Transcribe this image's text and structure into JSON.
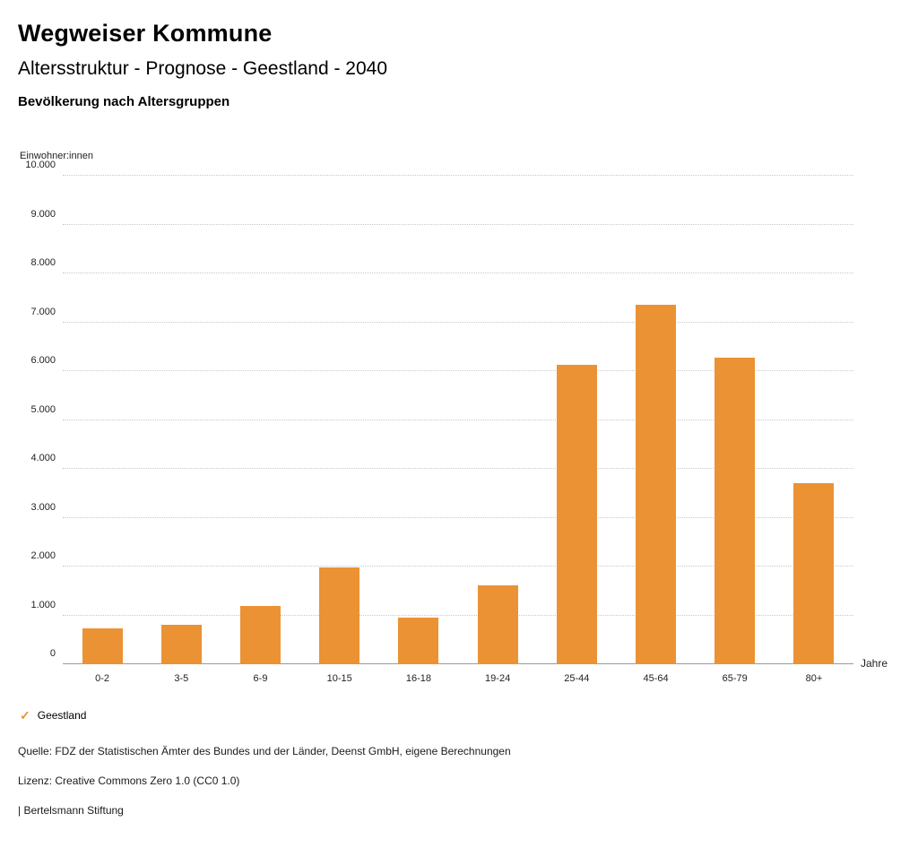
{
  "header": {
    "title": "Wegweiser Kommune",
    "subtitle": "Altersstruktur - Prognose - Geestland - 2040",
    "chart_title": "Bevölkerung nach Altersgruppen"
  },
  "chart_data": {
    "type": "bar",
    "title": "Bevölkerung nach Altersgruppen",
    "ylabel": "Einwohner:innen",
    "xlabel": "Jahre",
    "categories": [
      "0-2",
      "3-5",
      "6-9",
      "10-15",
      "16-18",
      "19-24",
      "25-44",
      "45-64",
      "65-79",
      "80+"
    ],
    "series": [
      {
        "name": "Geestland",
        "values": [
          730,
          810,
          1200,
          1980,
          950,
          1620,
          6130,
          7350,
          6270,
          3700
        ]
      }
    ],
    "ylim": [
      0,
      10000
    ],
    "ytick_step": 1000,
    "ytick_labels": [
      "0",
      "1.000",
      "2.000",
      "3.000",
      "4.000",
      "5.000",
      "6.000",
      "7.000",
      "8.000",
      "9.000",
      "10.000"
    ],
    "grid": true,
    "bar_color": "#EB9234",
    "legend_position": "bottom"
  },
  "legend": {
    "label": "Geestland",
    "check_glyph": "✓",
    "check_color": "#EB9234"
  },
  "footer": {
    "source": "Quelle: FDZ der Statistischen Ämter des Bundes und der Länder, Deenst GmbH, eigene Berechnungen",
    "license": "Lizenz: Creative Commons Zero 1.0 (CC0 1.0)",
    "brand": "| Bertelsmann Stiftung"
  }
}
